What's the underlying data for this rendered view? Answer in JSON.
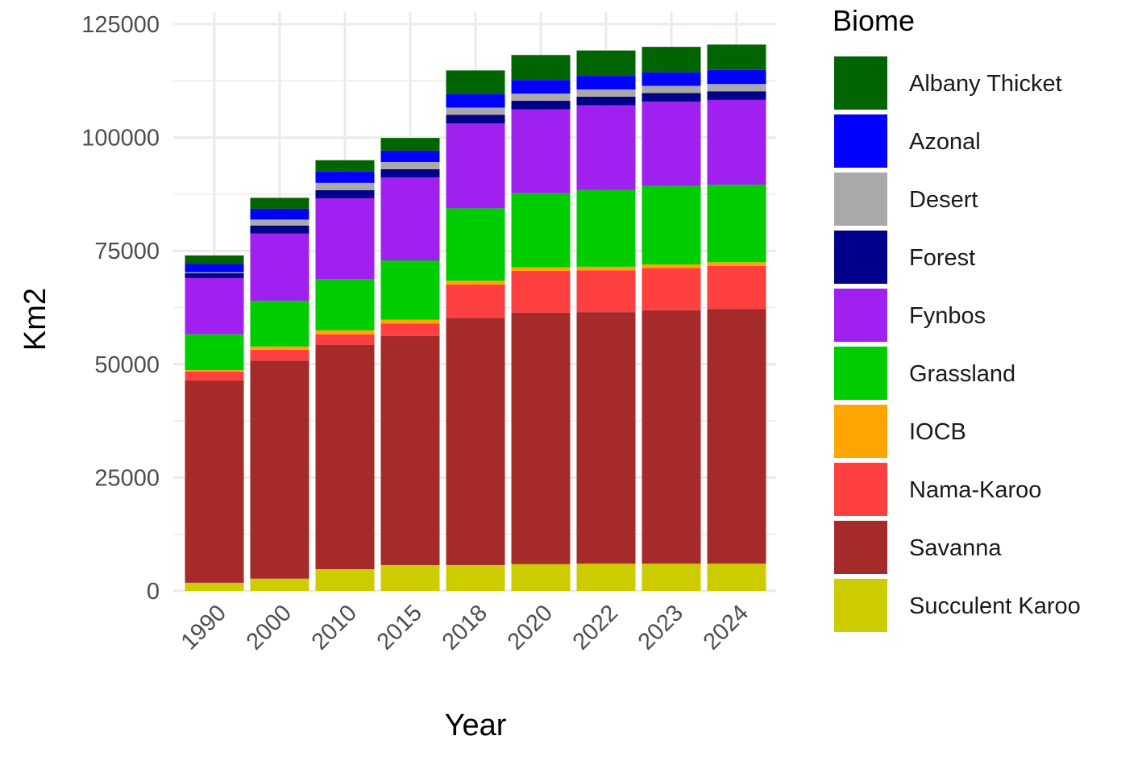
{
  "chart_data": {
    "type": "bar",
    "stacked": true,
    "categories": [
      "1990",
      "2000",
      "2010",
      "2015",
      "2018",
      "2020",
      "2022",
      "2023",
      "2024"
    ],
    "xlabel": "Year",
    "ylabel": "Km2",
    "ylim": [
      0,
      125000
    ],
    "yticks": [
      0,
      25000,
      50000,
      75000,
      100000,
      125000
    ],
    "ytick_labels": [
      "0",
      "25000",
      "50000",
      "75000",
      "100000",
      "125000"
    ],
    "grid": true,
    "legend": {
      "title": "Biome",
      "position": "right"
    },
    "series": [
      {
        "name": "Succulent Karoo",
        "color": "#CCCC00",
        "values": [
          1800,
          2700,
          4800,
          5700,
          5700,
          5900,
          6000,
          6000,
          6000
        ]
      },
      {
        "name": "Savanna",
        "color": "#A52A2A",
        "values": [
          44600,
          48100,
          49500,
          50500,
          54500,
          55500,
          55500,
          55900,
          56200
        ]
      },
      {
        "name": "Nama-Karoo",
        "color": "#FF4040",
        "values": [
          2000,
          2400,
          2300,
          2800,
          7400,
          9200,
          9200,
          9300,
          9500
        ]
      },
      {
        "name": "IOCB",
        "color": "#FFA500",
        "values": [
          300,
          700,
          900,
          800,
          800,
          800,
          800,
          800,
          800
        ]
      },
      {
        "name": "Grassland",
        "color": "#00CD00",
        "values": [
          7900,
          10100,
          11300,
          13100,
          16000,
          16300,
          16900,
          17300,
          17100
        ]
      },
      {
        "name": "Fynbos",
        "color": "#A020F0",
        "values": [
          12400,
          14800,
          17800,
          18300,
          18700,
          18500,
          18700,
          18600,
          18700
        ]
      },
      {
        "name": "Forest",
        "color": "#00008B",
        "values": [
          1100,
          1800,
          1800,
          1800,
          1900,
          1900,
          1900,
          1900,
          1900
        ]
      },
      {
        "name": "Desert",
        "color": "#A9A9A9",
        "values": [
          200,
          1300,
          1600,
          1600,
          1600,
          1600,
          1600,
          1600,
          1600
        ]
      },
      {
        "name": "Azonal",
        "color": "#0000FF",
        "values": [
          1800,
          2400,
          2500,
          2500,
          3000,
          3000,
          3000,
          3000,
          3100
        ]
      },
      {
        "name": "Albany Thicket",
        "color": "#006400",
        "values": [
          1900,
          2400,
          2500,
          2800,
          5200,
          5500,
          5600,
          5600,
          5600
        ]
      }
    ],
    "legend_order": [
      "Albany Thicket",
      "Azonal",
      "Desert",
      "Forest",
      "Fynbos",
      "Grassland",
      "IOCB",
      "Nama-Karoo",
      "Savanna",
      "Succulent Karoo"
    ]
  }
}
